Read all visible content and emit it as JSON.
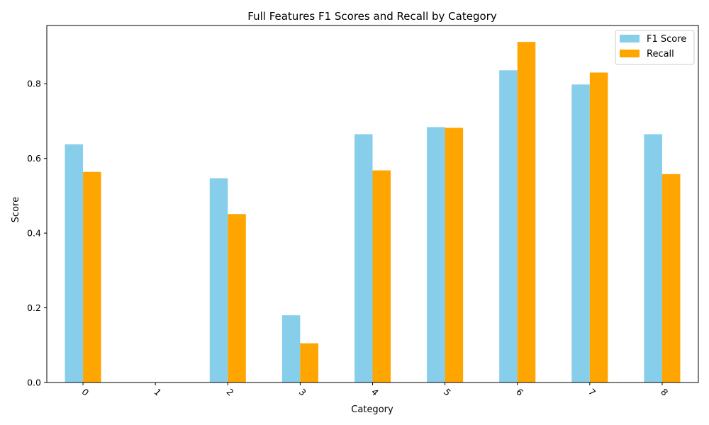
{
  "chart_data": {
    "type": "bar",
    "title": "Full Features F1 Scores and Recall by Category",
    "xlabel": "Category",
    "ylabel": "Score",
    "categories": [
      "0",
      "1",
      "2",
      "3",
      "4",
      "5",
      "6",
      "7",
      "8"
    ],
    "series": [
      {
        "name": "F1 Score",
        "color": "#87CEEB",
        "values": [
          0.638,
          0.0,
          0.547,
          0.18,
          0.665,
          0.684,
          0.836,
          0.798,
          0.665
        ]
      },
      {
        "name": "Recall",
        "color": "#FFA500",
        "values": [
          0.564,
          0.0,
          0.451,
          0.105,
          0.568,
          0.682,
          0.912,
          0.83,
          0.558
        ]
      }
    ],
    "ylim": [
      0,
      0.956
    ],
    "yticks": [
      "0.0",
      "0.2",
      "0.4",
      "0.6",
      "0.8"
    ],
    "ytick_values": [
      0.0,
      0.2,
      0.4,
      0.6,
      0.8
    ],
    "legend_position": "top-right",
    "xtick_rotation": 45,
    "grid": false
  }
}
